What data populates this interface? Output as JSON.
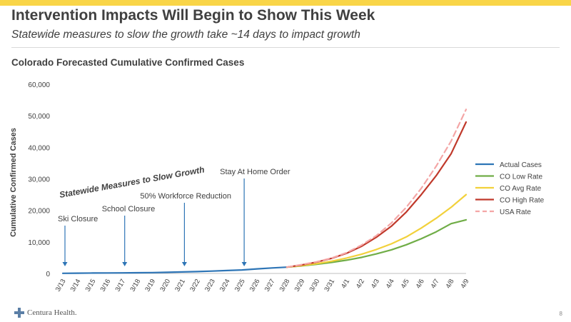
{
  "slide": {
    "title": "Intervention Impacts Will Begin to Show This Week",
    "subtitle": "Statewide measures to slow the growth take ~14 days to impact growth",
    "chart_heading": "Colorado Forecasted Cumulative Confirmed Cases",
    "footer_logo_text": "Centura Health.",
    "page_number": "8"
  },
  "colors": {
    "accent_bar": "#f9d548",
    "actual": "#2e75b6",
    "low": "#70ad47",
    "avg": "#f2d13b",
    "high": "#c0392b",
    "usa": "#f4a6a6",
    "logo_cross": "#5b7fa6"
  },
  "chart_data": {
    "type": "line",
    "title": "Colorado Forecasted Cumulative Confirmed Cases",
    "xlabel": "",
    "ylabel": "Cumulative Confirmed Cases",
    "ylim": [
      0,
      60000
    ],
    "yticks": [
      0,
      10000,
      20000,
      30000,
      40000,
      50000,
      60000
    ],
    "ytick_labels": [
      "0",
      "10,000",
      "20,000",
      "30,000",
      "40,000",
      "50,000",
      "60,000"
    ],
    "grid": false,
    "legend_position": "right",
    "categories": [
      "3/13",
      "3/14",
      "3/15",
      "3/16",
      "3/17",
      "3/18",
      "3/19",
      "3/20",
      "3/21",
      "3/22",
      "3/23",
      "3/24",
      "3/25",
      "3/26",
      "3/27",
      "3/28",
      "3/29",
      "3/30",
      "3/31",
      "4/1",
      "4/2",
      "4/3",
      "4/4",
      "4/5",
      "4/6",
      "4/7",
      "4/8",
      "4/9"
    ],
    "series": [
      {
        "name": "Actual Cases",
        "color_key": "actual",
        "dash": false,
        "values": [
          50,
          100,
          130,
          160,
          180,
          220,
          280,
          360,
          480,
          600,
          750,
          920,
          1100,
          1450,
          1750,
          2000,
          null,
          null,
          null,
          null,
          null,
          null,
          null,
          null,
          null,
          null,
          null,
          null
        ]
      },
      {
        "name": "CO Low Rate",
        "color_key": "low",
        "dash": false,
        "values": [
          null,
          null,
          null,
          null,
          null,
          null,
          null,
          null,
          null,
          null,
          null,
          null,
          null,
          null,
          null,
          2000,
          2400,
          2900,
          3500,
          4200,
          5100,
          6200,
          7500,
          9100,
          11000,
          13200,
          15800,
          17000
        ]
      },
      {
        "name": "CO Avg Rate",
        "color_key": "avg",
        "dash": false,
        "values": [
          null,
          null,
          null,
          null,
          null,
          null,
          null,
          null,
          null,
          null,
          null,
          null,
          null,
          null,
          null,
          2000,
          2500,
          3100,
          3900,
          4900,
          6100,
          7600,
          9400,
          11600,
          14400,
          17500,
          21000,
          25000
        ]
      },
      {
        "name": "CO High Rate",
        "color_key": "high",
        "dash": false,
        "values": [
          null,
          null,
          null,
          null,
          null,
          null,
          null,
          null,
          null,
          null,
          null,
          null,
          null,
          null,
          null,
          2000,
          2700,
          3600,
          4800,
          6400,
          8600,
          11500,
          15000,
          19500,
          25000,
          31000,
          38000,
          48000
        ]
      },
      {
        "name": "USA Rate",
        "color_key": "usa",
        "dash": true,
        "values": [
          null,
          null,
          null,
          null,
          null,
          null,
          null,
          null,
          null,
          null,
          null,
          null,
          null,
          null,
          null,
          2000,
          2800,
          3700,
          4900,
          6600,
          9000,
          12000,
          16000,
          21000,
          27000,
          34000,
          42000,
          52000
        ]
      }
    ],
    "annotations": [
      {
        "text": "Ski Closure",
        "x": "3/13"
      },
      {
        "text": "School Closure",
        "x": "3/17"
      },
      {
        "text": "50% Workforce Reduction",
        "x": "3/21"
      },
      {
        "text": "Stay At Home Order",
        "x": "3/25"
      }
    ],
    "banner_text": "Statewide Measures to Slow Growth"
  }
}
